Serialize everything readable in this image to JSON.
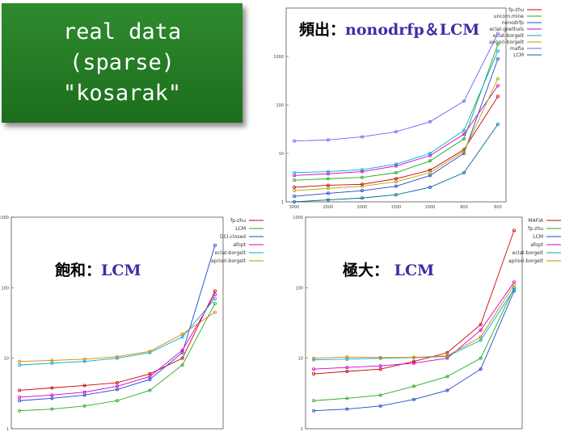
{
  "title_box": {
    "lines": [
      "real data",
      "(sparse)",
      "\"kosarak\""
    ],
    "background": "#1f7a1f"
  },
  "panels": {
    "frequent": {
      "title_prefix": "頻出：",
      "title_suffix": "nonodrfp＆LCM"
    },
    "closed": {
      "title_prefix": "飽和：",
      "title_suffix": "LCM"
    },
    "maximal": {
      "title_prefix": "極大：",
      "title_suffix": " LCM"
    }
  },
  "chart_data": [
    {
      "type": "line",
      "id": "frequent",
      "log_y": true,
      "ylim": [
        1,
        10000
      ],
      "y_ticks": [
        "1",
        "10",
        "100",
        "1000"
      ],
      "x_ticks": [
        "3000",
        "2500",
        "2000",
        "1500",
        "1000",
        "800",
        "600"
      ],
      "legend_placement": "right",
      "series": [
        {
          "name": "fp-zhu",
          "color": "#cc0000",
          "values": [
            2,
            2.2,
            2.3,
            3,
            4.5,
            12,
            150
          ]
        },
        {
          "name": "uncom.mine",
          "color": "#22aa22",
          "values": [
            2.8,
            3,
            3.2,
            4,
            7,
            20,
            1800
          ]
        },
        {
          "name": "nonodrfp",
          "color": "#2244cc",
          "values": [
            1.3,
            1.5,
            1.7,
            2.1,
            3.5,
            10,
            900
          ]
        },
        {
          "name": "eclat-goethals",
          "color": "#cc00cc",
          "values": [
            3.5,
            3.8,
            4.2,
            5.5,
            9,
            25,
            250
          ]
        },
        {
          "name": "eclat-borgelt",
          "color": "#00aacc",
          "values": [
            4,
            4.2,
            4.6,
            6,
            10,
            30,
            1300
          ]
        },
        {
          "name": "apriori-borgelt",
          "color": "#aaaa00",
          "values": [
            1.7,
            1.9,
            2.1,
            2.6,
            4,
            11,
            350
          ]
        },
        {
          "name": "mafia",
          "color": "#6666ff",
          "values": [
            18,
            19,
            22,
            28,
            45,
            120,
            3000
          ]
        },
        {
          "name": "LCM",
          "color": "#006699",
          "values": [
            1,
            1.1,
            1.2,
            1.4,
            2,
            4,
            40
          ]
        }
      ]
    },
    {
      "type": "line",
      "id": "closed",
      "log_y": true,
      "ylim": [
        1,
        1000
      ],
      "y_ticks": [
        "1",
        "10",
        "100",
        "1000"
      ],
      "legend_placement": "top-right",
      "series": [
        {
          "name": "fp-zhu",
          "color": "#cc0000",
          "values": [
            3.5,
            3.8,
            4.1,
            4.5,
            6,
            10,
            90
          ]
        },
        {
          "name": "LCM",
          "color": "#22aa22",
          "values": [
            1.8,
            1.9,
            2.1,
            2.5,
            3.5,
            8,
            60
          ]
        },
        {
          "name": "DCI-closed",
          "color": "#2244cc",
          "values": [
            2.5,
            2.7,
            3,
            3.6,
            5,
            12,
            400
          ]
        },
        {
          "name": "afopt",
          "color": "#cc00cc",
          "values": [
            2.8,
            3,
            3.3,
            4,
            5.5,
            13,
            80
          ]
        },
        {
          "name": "eclat-borgelt",
          "color": "#00aacc",
          "values": [
            8,
            8.5,
            9,
            10,
            12,
            20,
            70
          ]
        },
        {
          "name": "apriori-borgelt",
          "color": "#cc8800",
          "values": [
            9,
            9.3,
            9.7,
            10.5,
            12.5,
            22,
            45
          ]
        }
      ]
    },
    {
      "type": "line",
      "id": "maximal",
      "log_y": true,
      "ylim": [
        1,
        1000
      ],
      "y_ticks": [
        "1",
        "10",
        "100",
        "1000"
      ],
      "legend_placement": "top-right",
      "series": [
        {
          "name": "MAFIA",
          "color": "#cc0000",
          "values": [
            6,
            6.5,
            7,
            9,
            12,
            30,
            650
          ]
        },
        {
          "name": "fp-zhu",
          "color": "#22aa22",
          "values": [
            2.5,
            2.7,
            3,
            4,
            5.5,
            10,
            100
          ]
        },
        {
          "name": "LCM",
          "color": "#2244cc",
          "values": [
            1.8,
            1.9,
            2.1,
            2.6,
            3.5,
            7,
            90
          ]
        },
        {
          "name": "afopt",
          "color": "#cc00cc",
          "values": [
            7,
            7.4,
            7.8,
            8.5,
            10,
            25,
            120
          ]
        },
        {
          "name": "eclat-borgelt",
          "color": "#00aacc",
          "values": [
            9.5,
            9.7,
            10,
            10.2,
            10.6,
            18,
            95
          ]
        },
        {
          "name": "apriori-borgelt",
          "color": "#cc8800",
          "values": [
            10,
            10.4,
            10.2,
            10.3,
            10.8,
            20,
            110
          ]
        }
      ]
    }
  ]
}
